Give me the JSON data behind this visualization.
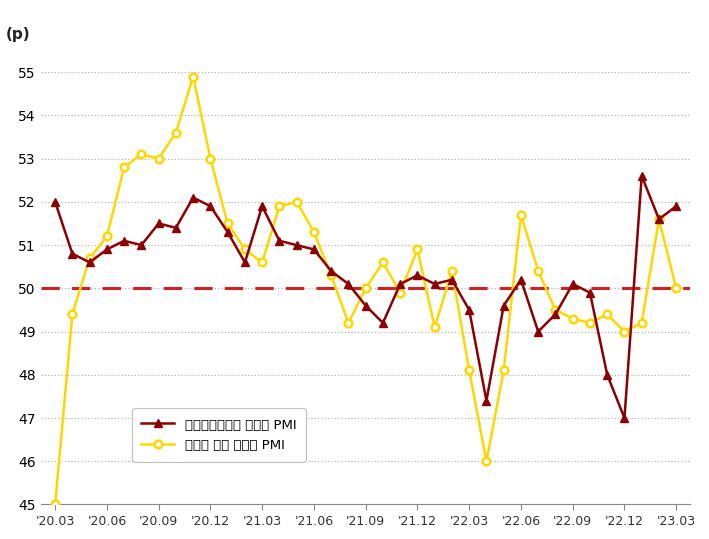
{
  "ylabel": "(p)",
  "ylim": [
    45,
    55.5
  ],
  "yticks": [
    45,
    46,
    47,
    48,
    49,
    50,
    51,
    52,
    53,
    54,
    55
  ],
  "reference_line": 50,
  "x_labels": [
    "'20.03",
    "'20.06",
    "'20.09",
    "'20.12",
    "'21.03",
    "'21.06",
    "'21.09",
    "'21.12",
    "'22.03",
    "'22.06",
    "'22.09",
    "'22.12",
    "'23.03"
  ],
  "nbs_pmi": [
    52.0,
    50.8,
    50.6,
    50.9,
    51.1,
    51.0,
    51.5,
    51.4,
    52.1,
    51.9,
    51.3,
    50.6,
    51.9,
    51.1,
    51.0,
    50.9,
    50.4,
    50.1,
    49.6,
    49.2,
    50.1,
    50.3,
    50.1,
    50.2,
    49.5,
    47.4,
    49.6,
    50.2,
    49.0,
    49.4,
    50.1,
    49.9,
    48.0,
    47.0,
    52.6,
    51.6,
    51.9
  ],
  "caixin_pmi": [
    45.0,
    49.4,
    50.7,
    51.2,
    52.8,
    53.1,
    53.0,
    53.6,
    54.9,
    53.0,
    51.5,
    50.9,
    50.6,
    51.9,
    52.0,
    51.3,
    50.3,
    49.2,
    50.0,
    50.6,
    49.9,
    50.9,
    49.1,
    50.4,
    48.1,
    46.0,
    48.1,
    51.7,
    50.4,
    49.5,
    49.3,
    49.2,
    49.4,
    49.0,
    49.2,
    51.6,
    50.0
  ],
  "nbs_color": "#8B0000",
  "caixin_color": "#FFD700",
  "legend_label_nbs": "중국국가통계국 제조업 PMI",
  "legend_label_caixin": "차이신 중국 제조업 PMI",
  "background_color": "#ffffff",
  "grid_color": "#aaaaaa",
  "spine_color": "#888888"
}
